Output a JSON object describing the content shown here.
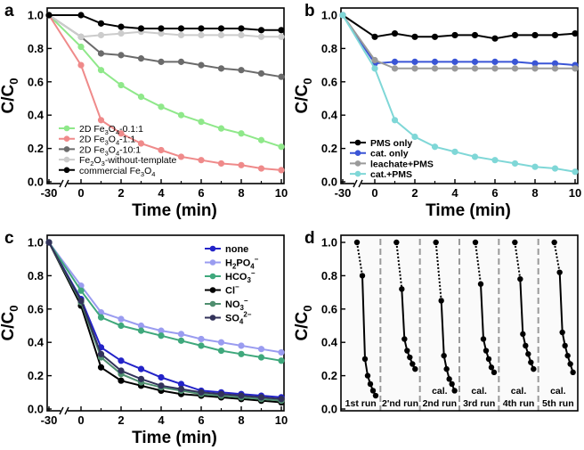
{
  "chart_data": [
    {
      "panel": "a",
      "type": "line",
      "xlabel": "Time (min)",
      "ylabel_main": "C/C",
      "ylabel_sub": "0",
      "xlim": [
        -30,
        10
      ],
      "ylim": [
        0,
        1.0
      ],
      "x_ticks": [
        -30,
        0,
        2,
        4,
        6,
        8,
        10
      ],
      "y_ticks": [
        "0.0",
        "0.2",
        "0.4",
        "0.6",
        "0.8",
        "1.0"
      ],
      "legend_position": "bottom-left",
      "series": [
        {
          "name": "2D Fe3O4-0.1:1",
          "legend": [
            "2D Fe",
            "3",
            "O",
            "4",
            "-0.1:1"
          ],
          "color": "#8fe88a",
          "x": [
            -30,
            0,
            1,
            2,
            3,
            4,
            5,
            6,
            7,
            8,
            9,
            10
          ],
          "values": [
            1.0,
            0.81,
            0.67,
            0.58,
            0.51,
            0.45,
            0.4,
            0.36,
            0.32,
            0.29,
            0.25,
            0.21
          ]
        },
        {
          "name": "2D Fe3O4-1:1",
          "legend": [
            "2D Fe",
            "3",
            "O",
            "4",
            "-1:1"
          ],
          "color": "#ef8a8a",
          "x": [
            -30,
            0,
            1,
            2,
            3,
            4,
            5,
            6,
            7,
            8,
            9,
            10
          ],
          "values": [
            1.0,
            0.7,
            0.37,
            0.29,
            0.23,
            0.19,
            0.15,
            0.13,
            0.11,
            0.1,
            0.08,
            0.07
          ]
        },
        {
          "name": "2D Fe3O4-10:1",
          "legend": [
            "2D Fe",
            "3",
            "O",
            "4",
            "-10:1"
          ],
          "color": "#6b6b6b",
          "x": [
            -30,
            0,
            1,
            2,
            3,
            4,
            5,
            6,
            7,
            8,
            9,
            10
          ],
          "values": [
            1.0,
            0.87,
            0.77,
            0.76,
            0.74,
            0.72,
            0.72,
            0.7,
            0.68,
            0.67,
            0.65,
            0.63
          ]
        },
        {
          "name": "Fe2O3-without-template",
          "legend": [
            "Fe",
            "2",
            "O",
            "3",
            "-without-template"
          ],
          "color": "#cccccc",
          "x": [
            -30,
            0,
            1,
            2,
            3,
            4,
            5,
            6,
            7,
            8,
            9,
            10
          ],
          "values": [
            1.0,
            0.87,
            0.88,
            0.89,
            0.9,
            0.89,
            0.88,
            0.88,
            0.88,
            0.88,
            0.87,
            0.87
          ]
        },
        {
          "name": "commercial Fe3O4",
          "legend": [
            "commercial Fe",
            "3",
            "O",
            "4",
            ""
          ],
          "color": "#000000",
          "x": [
            -30,
            0,
            1,
            2,
            3,
            4,
            5,
            6,
            7,
            8,
            9,
            10
          ],
          "values": [
            1.0,
            1.0,
            0.95,
            0.93,
            0.92,
            0.92,
            0.92,
            0.92,
            0.92,
            0.92,
            0.91,
            0.91
          ]
        }
      ]
    },
    {
      "panel": "b",
      "type": "line",
      "xlabel": "Time (min)",
      "ylabel_main": "C/C",
      "ylabel_sub": "0",
      "xlim": [
        -30,
        10
      ],
      "ylim": [
        0,
        1.0
      ],
      "x_ticks": [
        -30,
        0,
        2,
        4,
        6,
        8,
        10
      ],
      "y_ticks": [
        "0.0",
        "0.2",
        "0.4",
        "0.6",
        "0.8",
        "1.0"
      ],
      "legend_position": "bottom-left",
      "series": [
        {
          "name": "PMS only",
          "color": "#000000",
          "x": [
            -30,
            0,
            1,
            2,
            3,
            4,
            5,
            6,
            7,
            8,
            9,
            10
          ],
          "values": [
            1.0,
            0.87,
            0.89,
            0.87,
            0.87,
            0.88,
            0.88,
            0.86,
            0.88,
            0.88,
            0.88,
            0.89
          ]
        },
        {
          "name": "cat. only",
          "color": "#3a55d6",
          "x": [
            -30,
            0,
            1,
            2,
            3,
            4,
            5,
            6,
            7,
            8,
            9,
            10
          ],
          "values": [
            1.0,
            0.71,
            0.72,
            0.72,
            0.72,
            0.72,
            0.72,
            0.72,
            0.72,
            0.71,
            0.71,
            0.7
          ]
        },
        {
          "name": "leachate+PMS",
          "color": "#9a9a9a",
          "x": [
            -30,
            0,
            1,
            2,
            3,
            4,
            5,
            6,
            7,
            8,
            9,
            10
          ],
          "values": [
            1.0,
            0.73,
            0.68,
            0.68,
            0.68,
            0.68,
            0.68,
            0.68,
            0.68,
            0.68,
            0.68,
            0.68
          ]
        },
        {
          "name": "cat.+PMS",
          "color": "#7fd7d7",
          "x": [
            -30,
            0,
            1,
            2,
            3,
            4,
            5,
            6,
            7,
            8,
            9,
            10
          ],
          "values": [
            1.0,
            0.68,
            0.37,
            0.27,
            0.21,
            0.18,
            0.15,
            0.13,
            0.11,
            0.09,
            0.08,
            0.06
          ]
        }
      ]
    },
    {
      "panel": "c",
      "type": "line",
      "xlabel": "Time (min)",
      "ylabel_main": "C/C",
      "ylabel_sub": "0",
      "xlim": [
        -30,
        10
      ],
      "ylim": [
        0,
        1.0
      ],
      "x_ticks": [
        -30,
        0,
        2,
        4,
        6,
        8,
        10
      ],
      "y_ticks": [
        "0.0",
        "0.2",
        "0.4",
        "0.6",
        "0.8",
        "1.0"
      ],
      "legend_position": "top-right",
      "series": [
        {
          "name": "none",
          "legend": [
            "none",
            "",
            ""
          ],
          "color": "#2323c8",
          "x": [
            -30,
            0,
            1,
            2,
            3,
            4,
            5,
            6,
            7,
            8,
            9,
            10
          ],
          "values": [
            1.0,
            0.66,
            0.37,
            0.29,
            0.24,
            0.19,
            0.15,
            0.11,
            0.1,
            0.09,
            0.08,
            0.07
          ]
        },
        {
          "name": "H2PO4-",
          "legend": [
            "H",
            "2",
            "PO",
            "4",
            "−"
          ],
          "color": "#9a9cf0",
          "x": [
            -30,
            0,
            1,
            2,
            3,
            4,
            5,
            6,
            7,
            8,
            9,
            10
          ],
          "values": [
            1.0,
            0.74,
            0.58,
            0.54,
            0.5,
            0.47,
            0.45,
            0.42,
            0.4,
            0.38,
            0.36,
            0.34
          ]
        },
        {
          "name": "HCO3-",
          "legend": [
            "HCO",
            "3",
            "",
            "",
            "−"
          ],
          "color": "#3fa87c",
          "x": [
            -30,
            0,
            1,
            2,
            3,
            4,
            5,
            6,
            7,
            8,
            9,
            10
          ],
          "values": [
            1.0,
            0.71,
            0.55,
            0.5,
            0.47,
            0.44,
            0.41,
            0.38,
            0.35,
            0.33,
            0.31,
            0.29
          ]
        },
        {
          "name": "Cl-",
          "legend": [
            "Cl",
            "",
            "",
            "",
            "−"
          ],
          "color": "#000000",
          "x": [
            -30,
            0,
            1,
            2,
            3,
            4,
            5,
            6,
            7,
            8,
            9,
            10
          ],
          "values": [
            1.0,
            0.62,
            0.25,
            0.17,
            0.14,
            0.11,
            0.09,
            0.08,
            0.07,
            0.06,
            0.05,
            0.04
          ]
        },
        {
          "name": "NO3-",
          "legend": [
            "NO",
            "3",
            "",
            "",
            "−"
          ],
          "color": "#4f8f6f",
          "x": [
            -30,
            0,
            1,
            2,
            3,
            4,
            5,
            6,
            7,
            8,
            9,
            10
          ],
          "values": [
            1.0,
            0.64,
            0.31,
            0.21,
            0.16,
            0.13,
            0.11,
            0.09,
            0.08,
            0.07,
            0.06,
            0.05
          ]
        },
        {
          "name": "SO4 2-",
          "legend": [
            "SO",
            "4",
            "",
            "",
            "2−"
          ],
          "color": "#32325a",
          "x": [
            -30,
            0,
            1,
            2,
            3,
            4,
            5,
            6,
            7,
            8,
            9,
            10
          ],
          "values": [
            1.0,
            0.65,
            0.33,
            0.23,
            0.18,
            0.14,
            0.12,
            0.1,
            0.09,
            0.08,
            0.07,
            0.06
          ]
        }
      ]
    },
    {
      "panel": "d",
      "type": "line",
      "ylabel_main": "C/C",
      "ylabel_sub": "0",
      "ylim": [
        0,
        1.0
      ],
      "y_ticks": [
        "0.0",
        "0.2",
        "0.4",
        "0.6",
        "0.8",
        "1.0"
      ],
      "run_labels": [
        {
          "top": "",
          "bottom": "1st run"
        },
        {
          "top": "",
          "bottom": "2'nd run"
        },
        {
          "top": "cal.",
          "bottom": "2nd run"
        },
        {
          "top": "cal.",
          "bottom": "3rd run"
        },
        {
          "top": "cal.",
          "bottom": "4th run"
        },
        {
          "top": "cal.",
          "bottom": "5th run"
        }
      ],
      "runs": [
        {
          "values": [
            1.0,
            0.8,
            0.3,
            0.2,
            0.15,
            0.11,
            0.08
          ]
        },
        {
          "values": [
            1.0,
            0.72,
            0.42,
            0.35,
            0.31,
            0.27,
            0.24
          ]
        },
        {
          "values": [
            1.0,
            0.65,
            0.32,
            0.24,
            0.18,
            0.15,
            0.11
          ]
        },
        {
          "values": [
            1.0,
            0.75,
            0.42,
            0.35,
            0.3,
            0.25,
            0.22
          ]
        },
        {
          "values": [
            1.0,
            0.78,
            0.45,
            0.38,
            0.33,
            0.28,
            0.24
          ]
        },
        {
          "values": [
            1.0,
            0.82,
            0.46,
            0.38,
            0.32,
            0.27,
            0.22
          ]
        }
      ],
      "line_color": "#000000",
      "separator_color": "#9a9a9a"
    }
  ]
}
